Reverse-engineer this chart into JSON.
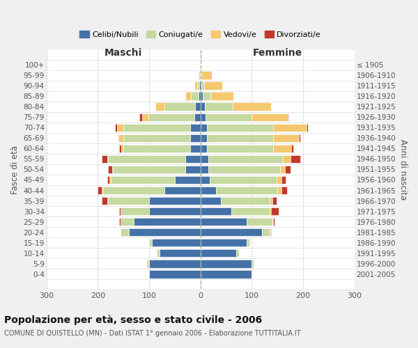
{
  "age_groups": [
    "0-4",
    "5-9",
    "10-14",
    "15-19",
    "20-24",
    "25-29",
    "30-34",
    "35-39",
    "40-44",
    "45-49",
    "50-54",
    "55-59",
    "60-64",
    "65-69",
    "70-74",
    "75-79",
    "80-84",
    "85-89",
    "90-94",
    "95-99",
    "100+"
  ],
  "birth_years": [
    "2001-2005",
    "1996-2000",
    "1991-1995",
    "1986-1990",
    "1981-1985",
    "1976-1980",
    "1971-1975",
    "1966-1970",
    "1961-1965",
    "1956-1960",
    "1951-1955",
    "1946-1950",
    "1941-1945",
    "1936-1940",
    "1931-1935",
    "1926-1930",
    "1921-1925",
    "1916-1920",
    "1911-1915",
    "1906-1910",
    "≤ 1905"
  ],
  "males": {
    "celibe": [
      100,
      100,
      80,
      95,
      140,
      130,
      100,
      100,
      70,
      50,
      30,
      30,
      20,
      20,
      20,
      12,
      10,
      4,
      2,
      0,
      0
    ],
    "coniugato": [
      2,
      3,
      5,
      5,
      15,
      25,
      55,
      80,
      120,
      125,
      140,
      150,
      130,
      130,
      130,
      90,
      60,
      15,
      5,
      1,
      0
    ],
    "vedovo": [
      0,
      2,
      0,
      0,
      0,
      1,
      1,
      2,
      2,
      2,
      2,
      2,
      4,
      8,
      12,
      12,
      18,
      10,
      5,
      3,
      0
    ],
    "divorziato": [
      0,
      0,
      0,
      0,
      1,
      2,
      3,
      10,
      8,
      5,
      8,
      10,
      5,
      2,
      4,
      5,
      0,
      0,
      0,
      0,
      0
    ]
  },
  "females": {
    "nubile": [
      100,
      100,
      70,
      90,
      120,
      90,
      60,
      40,
      30,
      18,
      15,
      15,
      12,
      12,
      12,
      10,
      8,
      4,
      2,
      0,
      0
    ],
    "coniugata": [
      1,
      3,
      5,
      5,
      15,
      50,
      75,
      95,
      120,
      130,
      140,
      145,
      130,
      130,
      130,
      90,
      55,
      15,
      5,
      2,
      0
    ],
    "vedova": [
      0,
      0,
      0,
      0,
      1,
      2,
      3,
      5,
      8,
      10,
      10,
      15,
      35,
      50,
      65,
      70,
      75,
      45,
      35,
      20,
      2
    ],
    "divorziata": [
      0,
      0,
      0,
      0,
      1,
      2,
      15,
      8,
      10,
      8,
      10,
      20,
      4,
      2,
      2,
      2,
      0,
      0,
      0,
      0,
      0
    ]
  },
  "color_celibe": "#4472a8",
  "color_coniugato": "#c5d9a0",
  "color_vedovo": "#f5c870",
  "color_divorziato": "#c0392b",
  "xlim": 300,
  "title": "Popolazione per età, sesso e stato civile - 2006",
  "subtitle": "COMUNE DI QUISTELLO (MN) - Dati ISTAT 1° gennaio 2006 - Elaborazione TUTTITALIA.IT",
  "ylabel_left": "Fasce di età",
  "ylabel_right": "Anni di nascita",
  "xlabel_left": "Maschi",
  "xlabel_right": "Femmine",
  "bg_color": "#f0f0f0",
  "plot_bg_color": "#ffffff"
}
